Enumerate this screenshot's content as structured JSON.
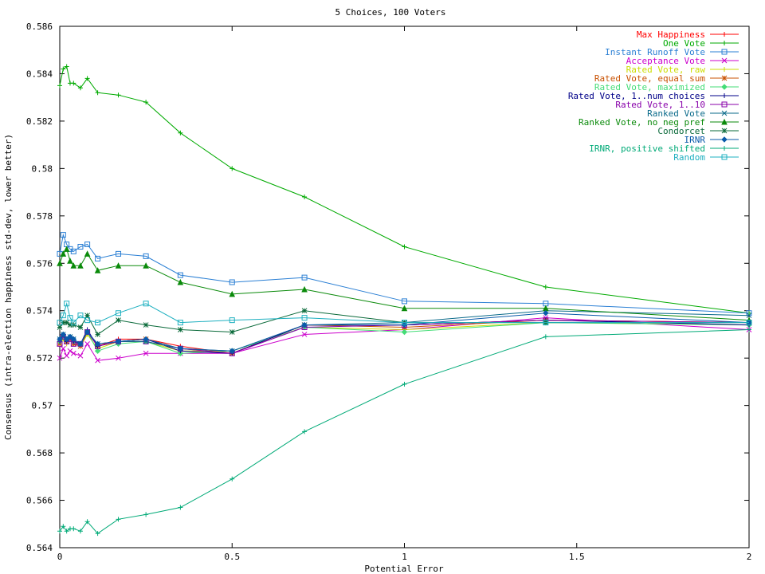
{
  "chart_data": {
    "type": "line",
    "title": "5 Choices, 100 Voters",
    "xlabel": "Potential Error",
    "ylabel": "Consensus (intra-election happiness std-dev, lower better)",
    "xlim": [
      0,
      2
    ],
    "ylim": [
      0.564,
      0.586
    ],
    "xticks": [
      "0",
      "0.5",
      "1",
      "1.5",
      "2"
    ],
    "yticks": [
      "0.564",
      "0.566",
      "0.568",
      "0.57",
      "0.572",
      "0.574",
      "0.576",
      "0.578",
      "0.58",
      "0.582",
      "0.584",
      "0.586"
    ],
    "legend_position": "top-right",
    "x": [
      0,
      0.01,
      0.02,
      0.03,
      0.04,
      0.06,
      0.08,
      0.11,
      0.17,
      0.25,
      0.35,
      0.5,
      0.71,
      1,
      1.41,
      2
    ],
    "series": [
      {
        "name": "Max Happiness",
        "color": "#ff0000",
        "marker": "+",
        "values": [
          0.5727,
          0.5729,
          0.5727,
          0.5729,
          0.5726,
          0.5725,
          0.5731,
          0.5725,
          0.5728,
          0.5728,
          0.5725,
          0.5722,
          0.5734,
          0.5734,
          0.5736,
          0.5735
        ]
      },
      {
        "name": "One Vote",
        "color": "#00aa00",
        "marker": "+",
        "values": [
          0.5835,
          0.5842,
          0.5843,
          0.5836,
          0.5836,
          0.5834,
          0.5838,
          0.5832,
          0.5831,
          0.5828,
          0.5815,
          0.58,
          0.5788,
          0.5767,
          0.575,
          0.5739
        ]
      },
      {
        "name": "Instant Runoff Vote",
        "color": "#2a7fd4",
        "marker": "square",
        "values": [
          0.5764,
          0.5772,
          0.5768,
          0.5766,
          0.5765,
          0.5767,
          0.5768,
          0.5762,
          0.5764,
          0.5763,
          0.5755,
          0.5752,
          0.5754,
          0.5744,
          0.5743,
          0.5739
        ]
      },
      {
        "name": "Acceptance Vote",
        "color": "#cc00cc",
        "marker": "x",
        "values": [
          0.572,
          0.5724,
          0.5721,
          0.5723,
          0.5722,
          0.5721,
          0.5726,
          0.5719,
          0.572,
          0.5722,
          0.5722,
          0.5722,
          0.573,
          0.5732,
          0.5737,
          0.5732
        ]
      },
      {
        "name": "Rated Vote, raw",
        "color": "#ccdd00",
        "marker": "+",
        "values": [
          0.5726,
          0.5728,
          0.5726,
          0.5729,
          0.5727,
          0.5725,
          0.573,
          0.5724,
          0.5727,
          0.5727,
          0.5723,
          0.5723,
          0.5733,
          0.5732,
          0.5735,
          0.5734
        ]
      },
      {
        "name": "Rated Vote, equal sum",
        "color": "#c85000",
        "marker": "*",
        "values": [
          0.5726,
          0.5729,
          0.5727,
          0.5728,
          0.5726,
          0.5725,
          0.5731,
          0.5725,
          0.5727,
          0.5728,
          0.5724,
          0.5722,
          0.5734,
          0.5733,
          0.5736,
          0.5735
        ]
      },
      {
        "name": "Rated Vote, maximized",
        "color": "#44dd77",
        "marker": "diamond",
        "values": [
          0.5727,
          0.5729,
          0.5728,
          0.5729,
          0.5727,
          0.5726,
          0.5731,
          0.5723,
          0.5726,
          0.5727,
          0.5722,
          0.5723,
          0.5733,
          0.5731,
          0.5735,
          0.5734
        ]
      },
      {
        "name": "Rated Vote, 1..num choices",
        "color": "#000088",
        "marker": "+",
        "values": [
          0.5727,
          0.573,
          0.5727,
          0.5729,
          0.5727,
          0.5726,
          0.5732,
          0.5725,
          0.5727,
          0.5728,
          0.5723,
          0.5722,
          0.5734,
          0.5734,
          0.5736,
          0.5734
        ]
      },
      {
        "name": "Rated Vote, 1..10",
        "color": "#8800aa",
        "marker": "square",
        "values": [
          0.5726,
          0.5729,
          0.5727,
          0.5728,
          0.5726,
          0.5726,
          0.5731,
          0.5725,
          0.5727,
          0.5727,
          0.5724,
          0.5722,
          0.5733,
          0.5734,
          0.5736,
          0.5735
        ]
      },
      {
        "name": "Ranked Vote",
        "color": "#0a6a8a",
        "marker": "x",
        "values": [
          0.5728,
          0.573,
          0.5728,
          0.5729,
          0.5728,
          0.5726,
          0.5731,
          0.5726,
          0.5727,
          0.5727,
          0.5724,
          0.5723,
          0.5734,
          0.5735,
          0.574,
          0.5738
        ]
      },
      {
        "name": "Ranked Vote, no neg pref",
        "color": "#0a8a0a",
        "marker": "triangle",
        "values": [
          0.576,
          0.5764,
          0.5766,
          0.5761,
          0.5759,
          0.5759,
          0.5764,
          0.5757,
          0.5759,
          0.5759,
          0.5752,
          0.5747,
          0.5749,
          0.5741,
          0.5741,
          0.5736
        ]
      },
      {
        "name": "Condorcet",
        "color": "#0a6a3a",
        "marker": "*",
        "values": [
          0.5733,
          0.5735,
          0.5735,
          0.5734,
          0.5734,
          0.5733,
          0.5738,
          0.573,
          0.5736,
          0.5734,
          0.5732,
          0.5731,
          0.574,
          0.5735,
          0.5735,
          0.5735
        ]
      },
      {
        "name": "IRNR",
        "color": "#0a5aaa",
        "marker": "diamond",
        "values": [
          0.5728,
          0.573,
          0.5728,
          0.5729,
          0.5728,
          0.5726,
          0.5731,
          0.5726,
          0.5727,
          0.5728,
          0.5724,
          0.5723,
          0.5734,
          0.5734,
          0.5739,
          0.5735
        ]
      },
      {
        "name": "IRNR, positive shifted",
        "color": "#00aa77",
        "marker": "+",
        "values": [
          0.5647,
          0.5649,
          0.5647,
          0.5648,
          0.5648,
          0.5647,
          0.5651,
          0.5646,
          0.5652,
          0.5654,
          0.5657,
          0.5669,
          0.5689,
          0.5709,
          0.5729,
          0.5732
        ]
      },
      {
        "name": "Random",
        "color": "#1eb0c0",
        "marker": "square",
        "values": [
          0.5735,
          0.5738,
          0.5743,
          0.5737,
          0.5735,
          0.5738,
          0.5736,
          0.5735,
          0.5739,
          0.5743,
          0.5735,
          0.5736,
          0.5737,
          0.5735,
          0.5735,
          0.5735
        ]
      }
    ]
  }
}
